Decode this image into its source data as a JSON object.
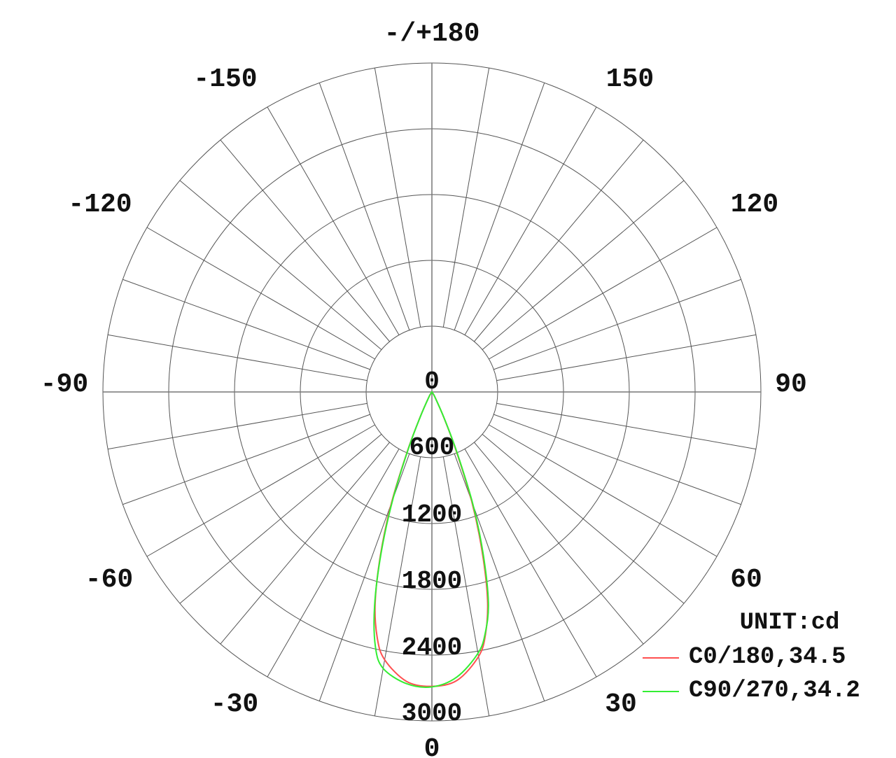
{
  "chart_data": {
    "type": "polar",
    "unit_label": "UNIT:cd",
    "radial_range": [
      0,
      3000
    ],
    "radial_ticks": [
      "0",
      "600",
      "1200",
      "1800",
      "2400",
      "3000"
    ],
    "angle_ticks": [
      "-/+180",
      "150",
      "120",
      "90",
      "60",
      "30",
      "0",
      "-30",
      "-60",
      "-90",
      "-120",
      "-150"
    ],
    "grid": true,
    "spoke_step_deg": 10,
    "legend_placement": "bottom-right",
    "series": [
      {
        "name": "C0/180,34.5",
        "color": "#ff5050",
        "angles": [
          0,
          5,
          10,
          12.5,
          15,
          17.5,
          20,
          22.5,
          25,
          30,
          35,
          40,
          90
        ],
        "values_right": [
          2685,
          2640,
          2450,
          2260,
          1960,
          1520,
          1060,
          570,
          260,
          60,
          10,
          0,
          0
        ],
        "values_left": [
          2685,
          2650,
          2480,
          2300,
          2000,
          1560,
          1080,
          580,
          260,
          60,
          10,
          0,
          0
        ]
      },
      {
        "name": "C90/270,34.2",
        "color": "#33ee33",
        "angles": [
          0,
          5,
          10,
          12.5,
          15,
          17.5,
          20,
          22.5,
          25,
          30,
          35,
          40,
          90
        ],
        "values_right": [
          2690,
          2610,
          2420,
          2250,
          1990,
          1560,
          1100,
          600,
          270,
          60,
          10,
          0,
          0
        ],
        "values_left": [
          2690,
          2670,
          2560,
          2380,
          2020,
          1540,
          1040,
          560,
          250,
          60,
          10,
          0,
          0
        ]
      }
    ]
  }
}
